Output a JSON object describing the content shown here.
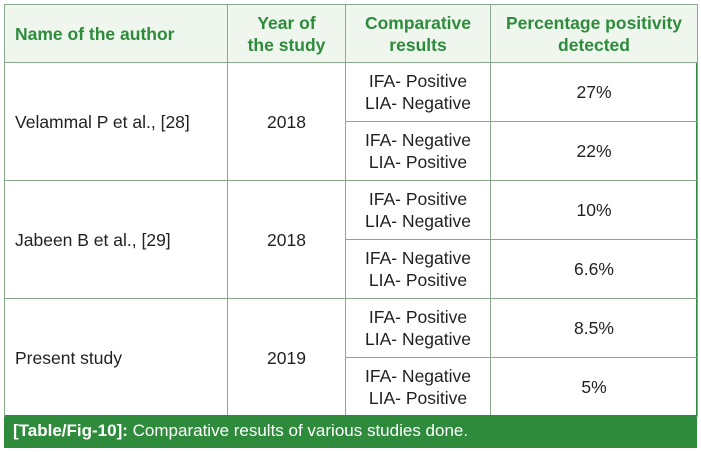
{
  "table": {
    "headers": {
      "author": "Name of the author",
      "year": [
        "Year of",
        "the study"
      ],
      "comparative": [
        "Comparative",
        "results"
      ],
      "percentage": [
        "Percentage positivity",
        "detected"
      ]
    },
    "groups": [
      {
        "author": "Velammal P et al., [28]",
        "year": "2018",
        "rows": [
          {
            "results": [
              "IFA- Positive",
              "LIA- Negative"
            ],
            "percentage": "27%"
          },
          {
            "results": [
              "IFA- Negative",
              "LIA- Positive"
            ],
            "percentage": "22%"
          }
        ]
      },
      {
        "author": "Jabeen B et al., [29]",
        "year": "2018",
        "rows": [
          {
            "results": [
              "IFA- Positive",
              "LIA- Negative"
            ],
            "percentage": "10%"
          },
          {
            "results": [
              "IFA- Negative",
              "LIA- Positive"
            ],
            "percentage": "6.6%"
          }
        ]
      },
      {
        "author": "Present study",
        "year": "2019",
        "rows": [
          {
            "results": [
              "IFA- Positive",
              "LIA- Negative"
            ],
            "percentage": "8.5%"
          },
          {
            "results": [
              "IFA- Negative",
              "LIA- Positive"
            ],
            "percentage": "5%"
          }
        ]
      }
    ]
  },
  "caption": {
    "label": "[Table/Fig-10]:",
    "text": " Comparative results of various studies done."
  }
}
